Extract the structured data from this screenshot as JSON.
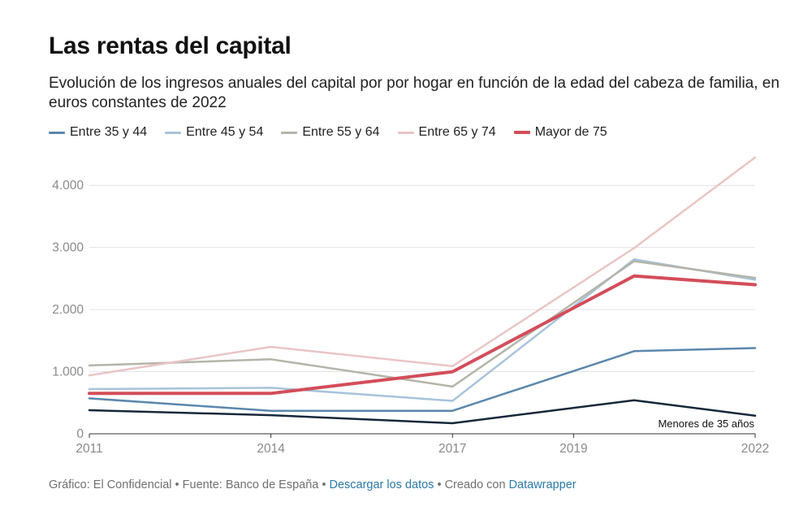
{
  "title": "Las rentas del capital",
  "subtitle": "Evolución de los ingresos anuales del capital por por hogar en función de la edad del cabeza de familia, en euros constantes de 2022",
  "legend": [
    {
      "label": "Entre 35 y 44",
      "color": "#5b87ad"
    },
    {
      "label": "Entre 45 y 54",
      "color": "#a8c3da"
    },
    {
      "label": "Entre 55 y 64",
      "color": "#b4b4a9"
    },
    {
      "label": "Entre 65 y 74",
      "color": "#e9c5c6"
    },
    {
      "label": "Mayor de 75",
      "color": "#d34d5a"
    }
  ],
  "footer": {
    "grafico": "Gráfico: El Confidencial",
    "fuente": "Fuente: Banco de España",
    "descargar": "Descargar los datos",
    "creado": "Creado con",
    "datawrapper": "Datawrapper",
    "sep": "•"
  },
  "chart_data": {
    "type": "line",
    "title": "Las rentas del capital",
    "xlabel": "",
    "ylabel": "",
    "ylim": [
      0,
      4500
    ],
    "xlim": [
      2011,
      2022
    ],
    "x": [
      2011,
      2014,
      2017,
      2020,
      2022
    ],
    "x_ticks": [
      2011,
      2014,
      2017,
      2019,
      2022
    ],
    "y_ticks": [
      0,
      1000,
      2000,
      3000,
      4000
    ],
    "y_tick_labels": [
      "0",
      "1.000",
      "2.000",
      "3.000",
      "4.000"
    ],
    "series": [
      {
        "name": "Menores de 35 años",
        "color": "#15273a",
        "width": 2.5,
        "values": [
          380,
          300,
          170,
          540,
          290
        ]
      },
      {
        "name": "Entre 35 y 44",
        "color": "#5b87ad",
        "width": 2.5,
        "values": [
          570,
          370,
          370,
          1330,
          1380
        ]
      },
      {
        "name": "Entre 45 y 54",
        "color": "#a8c3da",
        "width": 2.5,
        "values": [
          720,
          740,
          530,
          2810,
          2480
        ]
      },
      {
        "name": "Entre 55 y 64",
        "color": "#b4b4a9",
        "width": 2.5,
        "values": [
          1100,
          1200,
          760,
          2780,
          2510
        ]
      },
      {
        "name": "Entre 65 y 74",
        "color": "#e9c5c6",
        "width": 2.5,
        "values": [
          940,
          1400,
          1090,
          2990,
          4450
        ]
      },
      {
        "name": "Mayor de 75",
        "color": "#d34d5a",
        "width": 4,
        "values": [
          650,
          650,
          1000,
          2540,
          2400
        ]
      }
    ],
    "annotation": {
      "text": "Menores de 35 años"
    }
  }
}
